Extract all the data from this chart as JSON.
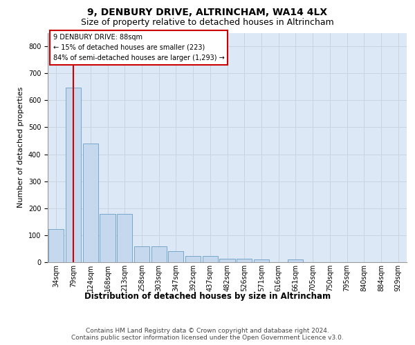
{
  "title": "9, DENBURY DRIVE, ALTRINCHAM, WA14 4LX",
  "subtitle": "Size of property relative to detached houses in Altrincham",
  "xlabel": "Distribution of detached houses by size in Altrincham",
  "ylabel": "Number of detached properties",
  "bar_values": [
    122,
    648,
    440,
    178,
    178,
    60,
    60,
    42,
    22,
    22,
    13,
    13,
    10,
    0,
    10,
    0,
    0,
    0,
    0,
    0,
    0
  ],
  "categories": [
    "34sqm",
    "79sqm",
    "124sqm",
    "168sqm",
    "213sqm",
    "258sqm",
    "303sqm",
    "347sqm",
    "392sqm",
    "437sqm",
    "482sqm",
    "526sqm",
    "571sqm",
    "616sqm",
    "661sqm",
    "705sqm",
    "750sqm",
    "795sqm",
    "840sqm",
    "884sqm",
    "929sqm"
  ],
  "bar_color": "#c5d8ed",
  "bar_edge_color": "#6a9ec5",
  "vline_x": 1.0,
  "annotation_text": "9 DENBURY DRIVE: 88sqm\n← 15% of detached houses are smaller (223)\n84% of semi-detached houses are larger (1,293) →",
  "annotation_box_facecolor": "#ffffff",
  "annotation_box_edgecolor": "#cc0000",
  "vline_color": "#cc0000",
  "ylim_max": 850,
  "yticks": [
    0,
    100,
    200,
    300,
    400,
    500,
    600,
    700,
    800
  ],
  "grid_color": "#c8d4e0",
  "plot_bg_color": "#dce8f5",
  "title_fontsize": 10,
  "subtitle_fontsize": 9,
  "xlabel_fontsize": 8.5,
  "ylabel_fontsize": 8,
  "tick_fontsize": 7,
  "annotation_fontsize": 7,
  "footer_fontsize": 6.5,
  "footer": "Contains HM Land Registry data © Crown copyright and database right 2024.\nContains public sector information licensed under the Open Government Licence v3.0."
}
